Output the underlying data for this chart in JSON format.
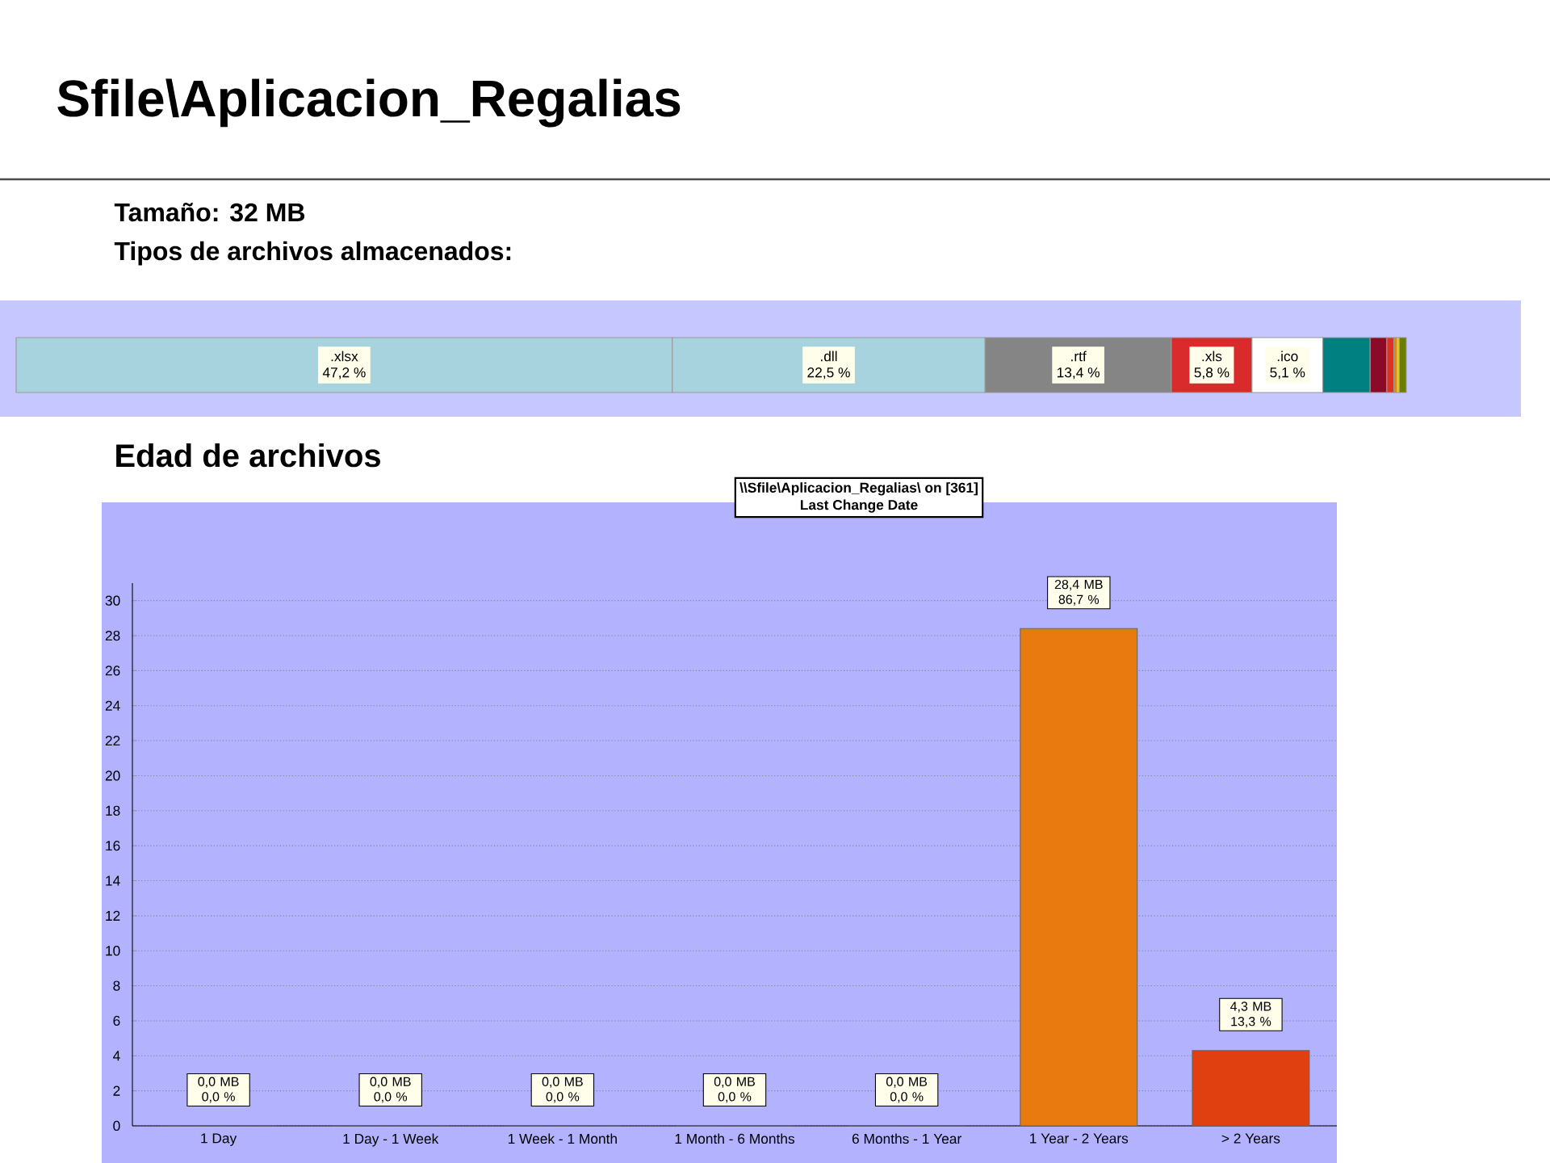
{
  "chart_data": [
    {
      "type": "bar",
      "orientation": "horizontal",
      "stacked": true,
      "title": "Sfile\\Aplicacion_Regalias",
      "annotations": [
        "Tamaño: 32 MB",
        "Tipos de archivos almacenados:"
      ],
      "categories": [
        null
      ],
      "series": [
        {
          "name": ".xlsx",
          "color": "#a6d3de",
          "values": [
            47.2
          ],
          "value_labels": [
            "47,2 %"
          ]
        },
        {
          "name": ".dll",
          "color": "#a6d3de",
          "values": [
            22.5
          ],
          "value_labels": [
            "22,5 %"
          ]
        },
        {
          "name": ".rtf",
          "color": "#858585",
          "values": [
            13.4
          ],
          "value_labels": [
            "13,4 %"
          ]
        },
        {
          "name": ".xls",
          "color": "#d92b2b",
          "values": [
            5.8
          ],
          "value_labels": [
            "5,8 %"
          ]
        },
        {
          "name": ".ico",
          "color": "#ffffff",
          "values": [
            5.1
          ],
          "value_labels": [
            "5,1 %"
          ]
        },
        {
          "color": "#008080",
          "values": [
            3.4
          ]
        },
        {
          "color": "#8b0a28",
          "values": [
            1.2
          ]
        },
        {
          "color": "#e03020",
          "values": [
            0.5
          ]
        },
        {
          "color": "#f08000",
          "values": [
            0.2
          ]
        },
        {
          "color": "#f0d000",
          "values": [
            0.2
          ]
        },
        {
          "color": "#6b7d00",
          "values": [
            0.5
          ]
        }
      ]
    },
    {
      "type": "bar",
      "title": "Edad de archivos",
      "annotations": [
        "\\\\Sfile\\Aplicacion_Regalias\\  on  [361]",
        "Last Change Date"
      ],
      "categories": [
        "1 Day",
        "1 Day - 1 Week",
        "1 Week - 1 Month",
        "1 Month - 6 Months",
        "6 Months - 1 Year",
        "1 Year - 2 Years",
        "> 2 Years"
      ],
      "values": [
        0,
        0,
        0,
        0,
        0,
        28.4,
        4.3
      ],
      "colors": [
        "#119911",
        "#1a8c1a",
        "#5a9a1a",
        "#8aa810",
        "#a87a00",
        "#e87a10",
        "#e04010"
      ],
      "value_labels": [
        "0,0 MB 0,0 %",
        "0,0 MB 0,0 %",
        "0,0 MB 0,0 %",
        "0,0 MB 0,0 %",
        "0,0 MB 0,0 %",
        "28,4 MB 86,7 %",
        "4,3 MB 13,3 %"
      ],
      "ylim": [
        0,
        31
      ],
      "yticks": [
        0,
        2,
        4,
        6,
        8,
        10,
        12,
        14,
        16,
        18,
        20,
        22,
        24,
        26,
        28,
        30
      ],
      "grid": "y"
    }
  ]
}
